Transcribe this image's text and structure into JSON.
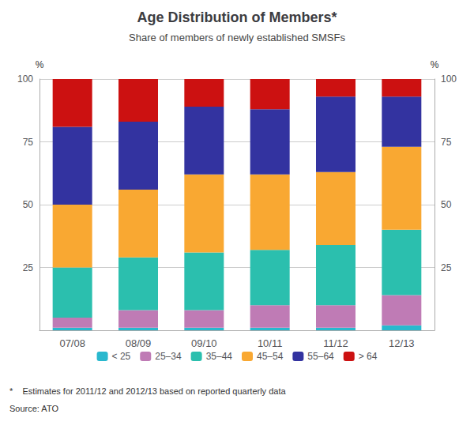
{
  "chart_data": {
    "type": "bar",
    "title": "Age Distribution of Members*",
    "subtitle": "Share of members of newly established SMSFs",
    "categories": [
      "07/08",
      "08/09",
      "09/10",
      "10/11",
      "11/12",
      "12/13"
    ],
    "series": [
      {
        "name": "< 25",
        "color": "#29B8CE",
        "values": [
          1,
          1,
          1,
          1,
          1,
          2
        ]
      },
      {
        "name": "25–34",
        "color": "#BF7BB5",
        "values": [
          4,
          7,
          7,
          9,
          9,
          12
        ]
      },
      {
        "name": "35–44",
        "color": "#2BBFAE",
        "values": [
          20,
          21,
          23,
          22,
          24,
          26
        ]
      },
      {
        "name": "45–54",
        "color": "#F9A832",
        "values": [
          25,
          27,
          31,
          30,
          29,
          33
        ]
      },
      {
        "name": "55–64",
        "color": "#3333A0",
        "values": [
          31,
          27,
          27,
          26,
          30,
          20
        ]
      },
      {
        "name": "> 64",
        "color": "#CC1111",
        "values": [
          19,
          17,
          11,
          12,
          7,
          7
        ]
      }
    ],
    "stacked": true,
    "ylabel": "%",
    "ylim": [
      0,
      100
    ],
    "yticks": [
      25,
      50,
      75,
      100
    ],
    "y2label": "%",
    "y2lim": [
      0,
      100
    ],
    "y2ticks": [
      25,
      50,
      75,
      100
    ],
    "grid": true,
    "legend": "bottom",
    "annotations": [
      "*    Estimates for 2011/12 and 2012/13 based on reported quarterly data",
      "Source: ATO"
    ]
  }
}
